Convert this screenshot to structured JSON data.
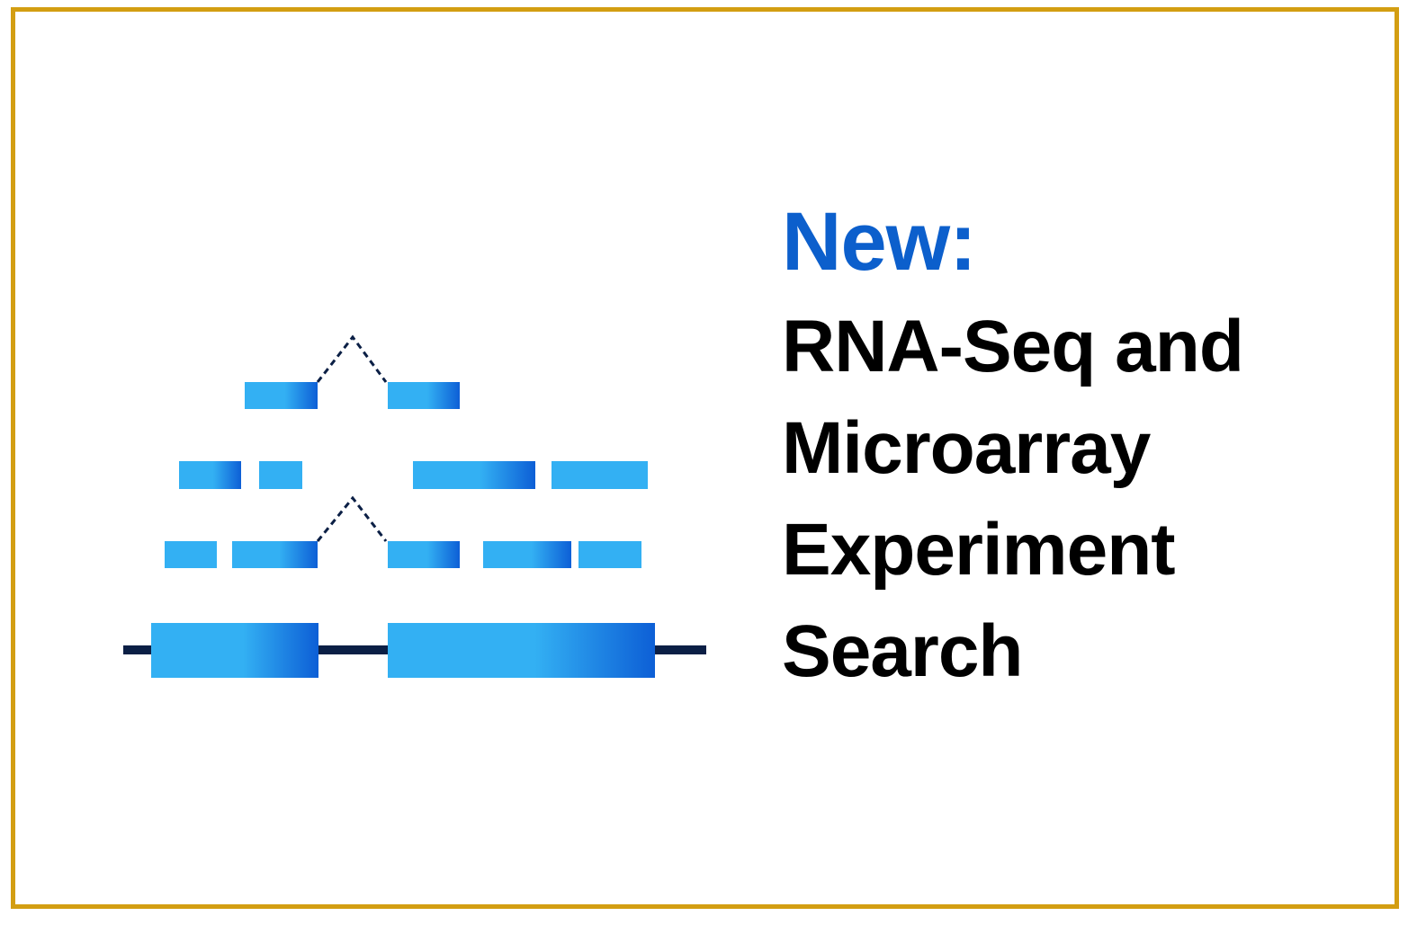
{
  "banner": {
    "new_label": "New:",
    "title_lines": [
      "RNA-Seq and",
      "Microarray",
      "Experiment",
      "Search"
    ],
    "graphic": {
      "icon": "rna-seq-read-alignment-icon",
      "description_name": "gene-structure-with-aligned-reads"
    }
  },
  "colors": {
    "border": "#d39e12",
    "accent_blue": "#0c5fcc",
    "exon_light": "#33b0f3",
    "exon_dark": "#0d5fd6",
    "intron_line": "#0b1f45",
    "text": "#000000"
  }
}
